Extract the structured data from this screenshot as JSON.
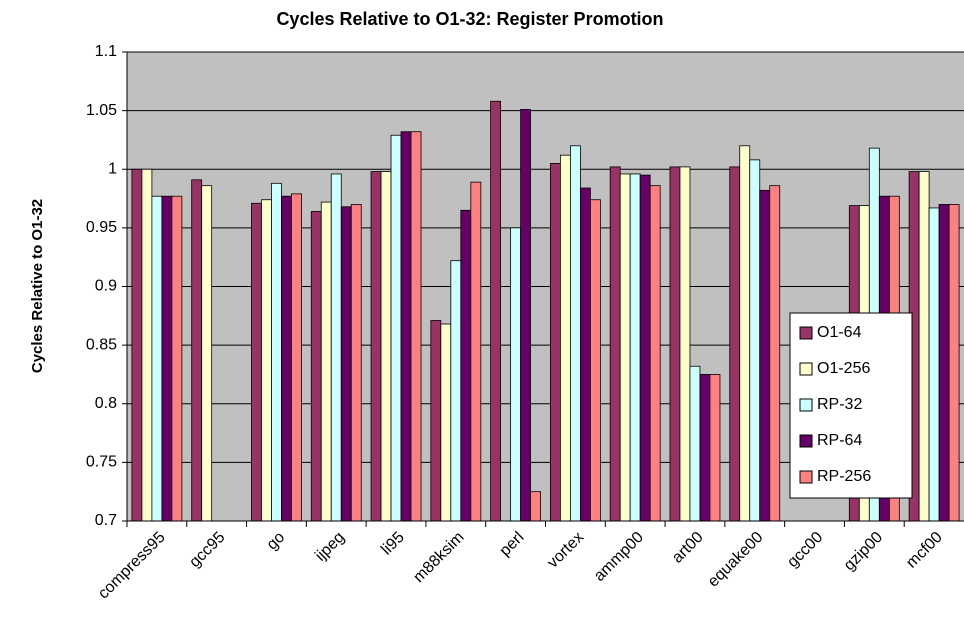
{
  "chart_data": {
    "type": "bar",
    "title": "Cycles Relative to O1-32: Register Promotion",
    "y_label": "Cycles Relative to O1-32",
    "categories": [
      "compress95",
      "gcc95",
      "go",
      "ijpeg",
      "li95",
      "m88ksim",
      "perl",
      "vortex",
      "ammp00",
      "art00",
      "equake00",
      "gcc00",
      "gzip00",
      "mcf00"
    ],
    "series": [
      {
        "name": "O1-64",
        "color": "#993366",
        "values": [
          1.0,
          0.991,
          0.971,
          0.964,
          0.998,
          0.871,
          1.058,
          1.005,
          1.002,
          1.002,
          1.002,
          null,
          0.969,
          0.998
        ]
      },
      {
        "name": "O1-256",
        "color": "#FFFFCC",
        "values": [
          1.0,
          0.986,
          0.974,
          0.972,
          0.998,
          0.868,
          null,
          1.012,
          0.996,
          1.002,
          1.02,
          null,
          0.969,
          0.998
        ]
      },
      {
        "name": "RP-32",
        "color": "#CCFFFF",
        "values": [
          0.977,
          null,
          0.988,
          0.996,
          1.029,
          0.922,
          0.95,
          1.02,
          0.996,
          0.832,
          1.008,
          null,
          1.018,
          0.967
        ]
      },
      {
        "name": "RP-64",
        "color": "#660066",
        "values": [
          0.977,
          null,
          0.977,
          0.968,
          1.032,
          0.965,
          1.051,
          0.984,
          0.995,
          0.825,
          0.982,
          null,
          0.977,
          0.97
        ]
      },
      {
        "name": "RP-256",
        "color": "#FF8080",
        "values": [
          0.977,
          null,
          0.979,
          0.97,
          1.032,
          0.989,
          0.725,
          0.974,
          0.986,
          0.825,
          0.986,
          null,
          0.977,
          0.97
        ]
      }
    ],
    "ylim": [
      0.7,
      1.1
    ],
    "yticks": [
      0.7,
      0.75,
      0.8,
      0.85,
      0.9,
      0.95,
      1,
      1.05,
      1.1
    ],
    "grid": true,
    "plot_background": "#C0C0C0",
    "legend_position": "right"
  }
}
